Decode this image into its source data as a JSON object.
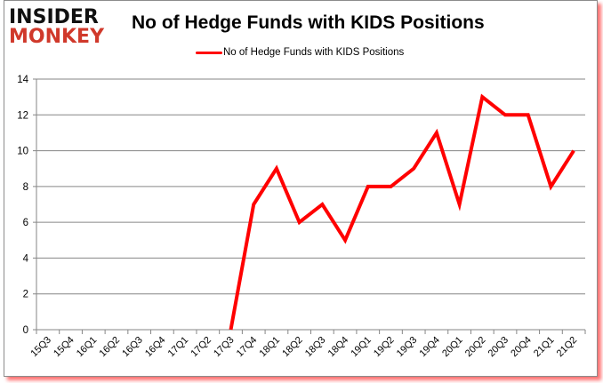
{
  "branding": {
    "logo_line1": "INSIDER",
    "logo_line2": "MONKEY"
  },
  "chart_data": {
    "type": "line",
    "title": "No of Hedge Funds with KIDS Positions",
    "xlabel": "",
    "ylabel": "",
    "ylim": [
      0,
      14
    ],
    "yticks": [
      0,
      2,
      4,
      6,
      8,
      10,
      12,
      14
    ],
    "grid": true,
    "legend_position": "top",
    "categories": [
      "15Q3",
      "15Q4",
      "16Q1",
      "16Q2",
      "16Q3",
      "16Q4",
      "17Q1",
      "17Q2",
      "17Q3",
      "17Q4",
      "18Q1",
      "18Q2",
      "18Q3",
      "18Q4",
      "19Q1",
      "19Q2",
      "19Q3",
      "19Q4",
      "20Q1",
      "20Q2",
      "20Q3",
      "20Q4",
      "21Q1",
      "21Q2"
    ],
    "series": [
      {
        "name": "No of Hedge Funds with KIDS Positions",
        "color": "#ff0000",
        "values": [
          null,
          null,
          null,
          null,
          null,
          null,
          null,
          null,
          0,
          7,
          9,
          6,
          7,
          5,
          8,
          8,
          9,
          11,
          7,
          13,
          12,
          12,
          8,
          10
        ]
      }
    ]
  },
  "colors": {
    "line": "#ff0000",
    "grid": "#868686",
    "logo_red": "#d0392b",
    "shadow": "#ff0000"
  }
}
